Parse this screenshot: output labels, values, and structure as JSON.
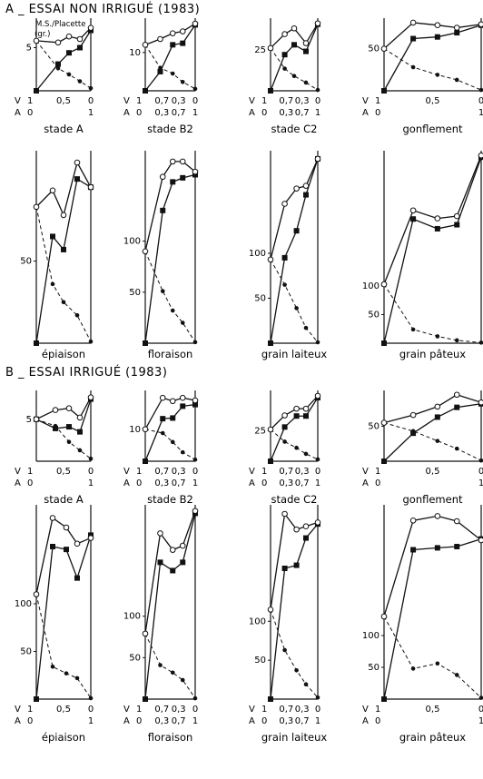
{
  "sections": [
    {
      "title": "A _ ESSAI NON IRRIGUÉ (1983)",
      "ylabel": "M.S./Placette",
      "yunit": "(gr.)",
      "panels": [
        {
          "name": "stade A",
          "ytick": "5",
          "v_labels": [
            "1",
            "0,5",
            "0"
          ],
          "a_labels": [
            "0",
            "1"
          ],
          "x": [
            0,
            0.4,
            0.6,
            0.8,
            1
          ],
          "total": [
            5.8,
            5.6,
            6.3,
            6.0,
            7.3
          ],
          "sec": [
            0.0,
            3.1,
            4.4,
            5.0,
            7.0
          ],
          "dash": [
            5.8,
            2.6,
            1.9,
            1.1,
            0.3
          ]
        },
        {
          "name": "stade B2",
          "ytick": "10",
          "v_labels": [
            "1",
            "0,7",
            "0,3",
            "0"
          ],
          "a_labels": [
            "0",
            "0,3",
            "0,7",
            "1"
          ],
          "x": [
            0,
            0.3,
            0.55,
            0.75,
            1
          ],
          "total": [
            12,
            13.5,
            15.0,
            15.5,
            17.5
          ],
          "sec": [
            0,
            5.0,
            12.0,
            12.4,
            17.2
          ],
          "dash": [
            12,
            6.0,
            4.5,
            2.3,
            0.5
          ]
        },
        {
          "name": "stade C2",
          "ytick": "25",
          "v_labels": [
            "1",
            "0,7",
            "0,3",
            "0"
          ],
          "a_labels": [
            "0",
            "0,3",
            "0,7",
            "1"
          ],
          "x": [
            0,
            0.3,
            0.5,
            0.75,
            1
          ],
          "total": [
            26,
            34.5,
            38.0,
            29.0,
            41.0
          ],
          "sec": [
            0,
            22.0,
            28.0,
            24.0,
            40.5
          ],
          "dash": [
            26,
            13.5,
            9.0,
            5.0,
            0.5
          ]
        },
        {
          "name": "gonflement",
          "ytick": "50",
          "v_labels": [
            "1",
            "0,5",
            "0"
          ],
          "a_labels": [
            "0",
            "1"
          ],
          "x": [
            0,
            0.3,
            0.55,
            0.75,
            1
          ],
          "total": [
            50,
            81,
            78,
            75,
            79
          ],
          "sec": [
            0,
            62,
            64,
            69,
            78
          ],
          "dash": [
            50,
            28,
            19,
            13,
            1
          ]
        },
        {
          "name": "épiaison",
          "ytick": "50",
          "v_labels": [],
          "a_labels": [],
          "x": [
            0,
            0.3,
            0.5,
            0.75,
            1
          ],
          "total": [
            83,
            93,
            78,
            110,
            95
          ],
          "sec": [
            0,
            65,
            57,
            100,
            95
          ],
          "dash": [
            83,
            36,
            25,
            17,
            1
          ]
        },
        {
          "name": "floraison",
          "ytick": "100",
          "ytick2": "50",
          "v_labels": [],
          "a_labels": [],
          "x": [
            0,
            0.35,
            0.55,
            0.75,
            1
          ],
          "total": [
            90,
            163,
            178,
            178,
            168
          ],
          "sec": [
            0,
            130,
            158,
            162,
            165
          ],
          "dash": [
            90,
            51,
            32,
            20,
            1
          ]
        },
        {
          "name": "grain laiteux",
          "ytick": "100",
          "ytick2": "50",
          "v_labels": [],
          "a_labels": [],
          "x": [
            0,
            0.3,
            0.55,
            0.75,
            1
          ],
          "total": [
            93,
            155,
            172,
            175,
            205
          ],
          "sec": [
            0,
            95,
            125,
            165,
            205
          ],
          "dash": [
            93,
            65,
            39,
            17,
            1
          ]
        },
        {
          "name": "grain pâteux",
          "ytick": "100",
          "ytick2": "50",
          "v_labels": [],
          "a_labels": [],
          "x": [
            0,
            0.3,
            0.55,
            0.75,
            1
          ],
          "total": [
            103,
            232,
            218,
            222,
            328
          ],
          "sec": [
            0,
            217,
            200,
            207,
            325
          ],
          "dash": [
            103,
            24,
            12,
            5,
            1
          ]
        }
      ]
    },
    {
      "title": "B _ ESSAI IRRIGUÉ (1983)",
      "panels": [
        {
          "name": "stade A",
          "ytick": "5",
          "v_labels": [
            "1",
            "0,5",
            "0"
          ],
          "a_labels": [
            "0",
            "1"
          ],
          "x": [
            0,
            0.35,
            0.6,
            0.8,
            1
          ],
          "total": [
            5.0,
            6.1,
            6.3,
            5.2,
            7.6
          ],
          "sec": [
            5.0,
            3.9,
            4.1,
            3.5,
            7.4
          ],
          "dash": [
            5.0,
            4.2,
            2.3,
            1.3,
            0.3
          ]
        },
        {
          "name": "stade B2",
          "ytick": "10",
          "v_labels": [
            "1",
            "0,7",
            "0,3",
            "0"
          ],
          "a_labels": [
            "0",
            "0,3",
            "0,7",
            "1"
          ],
          "x": [
            0,
            0.35,
            0.55,
            0.75,
            1
          ],
          "total": [
            10,
            19.8,
            18.8,
            19.8,
            19.0
          ],
          "sec": [
            0,
            13.3,
            13.5,
            17.2,
            17.7
          ],
          "dash": [
            10,
            8.8,
            6.0,
            2.8,
            0.5
          ]
        },
        {
          "name": "stade C2",
          "ytick": "25",
          "v_labels": [
            "1",
            "0,7",
            "0,3",
            "0"
          ],
          "a_labels": [
            "0",
            "0,3",
            "0,7",
            "1"
          ],
          "x": [
            0,
            0.3,
            0.55,
            0.75,
            1
          ],
          "total": [
            26,
            37.5,
            43.0,
            43.0,
            53.5
          ],
          "sec": [
            0,
            28.0,
            37.0,
            37.0,
            52.0
          ],
          "dash": [
            26,
            16.0,
            11.0,
            6.0,
            1.5
          ]
        },
        {
          "name": "gonflement",
          "ytick": "50",
          "v_labels": [
            "1",
            "0,5",
            "0"
          ],
          "a_labels": [
            "0",
            "1"
          ],
          "x": [
            0,
            0.3,
            0.55,
            0.75,
            1
          ],
          "total": [
            55,
            66,
            78,
            95,
            84
          ],
          "sec": [
            0,
            40,
            63,
            77,
            82
          ],
          "dash": [
            55,
            43,
            29,
            18,
            1
          ]
        },
        {
          "name": "épiaison",
          "ytick": "100",
          "ytick2": "50",
          "v_labels": [
            "1",
            "0,5",
            "0"
          ],
          "a_labels": [
            "0",
            "1"
          ],
          "x": [
            0,
            0.3,
            0.55,
            0.75,
            1
          ],
          "total": [
            110,
            190,
            180,
            163,
            169
          ],
          "sec": [
            0,
            160,
            157,
            127,
            172
          ],
          "dash": [
            110,
            34,
            27,
            22,
            1
          ]
        },
        {
          "name": "floraison",
          "ytick": "100",
          "ytick2": "50",
          "v_labels": [
            "1",
            "0,7",
            "0,3",
            "0"
          ],
          "a_labels": [
            "0",
            "0,3",
            "0,7",
            "1"
          ],
          "x": [
            0,
            0.3,
            0.55,
            0.75,
            1
          ],
          "total": [
            79,
            200,
            180,
            185,
            227
          ],
          "sec": [
            0,
            165,
            155,
            165,
            224
          ],
          "dash": [
            79,
            41,
            32,
            23,
            1
          ]
        },
        {
          "name": "grain laiteux",
          "ytick": "100",
          "ytick2": "50",
          "v_labels": [
            "1",
            "0,7",
            "0,3",
            "0"
          ],
          "a_labels": [
            "0",
            "0,3",
            "0,7",
            "1"
          ],
          "x": [
            0,
            0.3,
            0.55,
            0.75,
            1
          ],
          "total": [
            115,
            238,
            218,
            222,
            227
          ],
          "sec": [
            0,
            168,
            172,
            207,
            225
          ],
          "dash": [
            115,
            63,
            37,
            19,
            2
          ]
        },
        {
          "name": "grain pâteux",
          "ytick": "100",
          "ytick2": "50",
          "v_labels": [
            "1",
            "0,5",
            "0"
          ],
          "a_labels": [
            "0",
            "1"
          ],
          "x": [
            0,
            0.3,
            0.55,
            0.75,
            1
          ],
          "total": [
            130,
            281,
            288,
            280,
            250
          ],
          "sec": [
            0,
            235,
            238,
            240,
            252
          ],
          "dash": [
            130,
            48,
            56,
            38,
            2
          ]
        }
      ]
    }
  ],
  "chart_data": {
    "type": "line",
    "series": [
      {
        "name": "",
        "marker": "open circle",
        "style": "solid"
      },
      {
        "name": "",
        "marker": "filled square",
        "style": "solid"
      },
      {
        "name": "",
        "marker": "filled circle",
        "style": "dashed"
      }
    ],
    "axis_rows": {
      "V": "V",
      "A": "A"
    }
  }
}
